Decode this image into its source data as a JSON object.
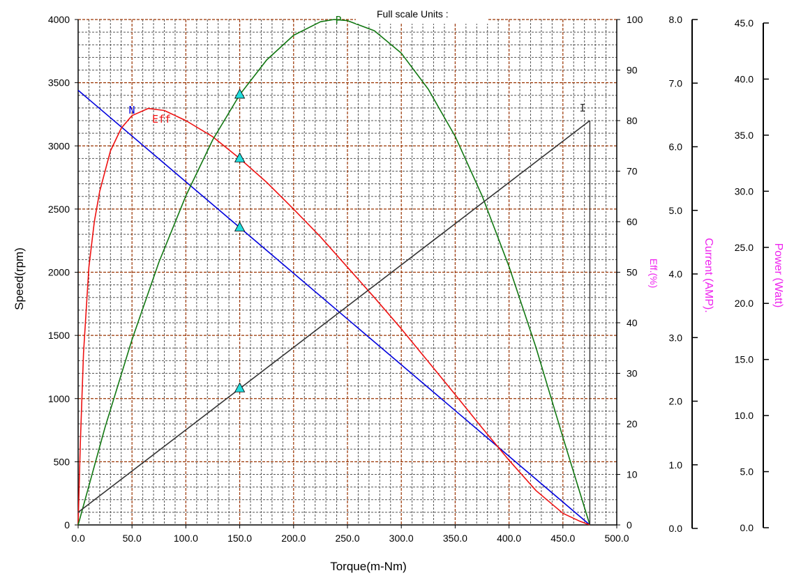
{
  "chart_data": {
    "type": "line",
    "header": "Full scale Units :",
    "xlabel": "Torque(m-Nm)",
    "xlim": [
      0,
      500
    ],
    "x_ticks": [
      "0.0",
      "50.0",
      "100.0",
      "150.0",
      "200.0",
      "250.0",
      "300.0",
      "350.0",
      "400.0",
      "450.0",
      "500.0"
    ],
    "axes": {
      "speed": {
        "label": "Speed(rpm)",
        "range": [
          0,
          4000
        ],
        "ticks": [
          "0",
          "500",
          "1000",
          "1500",
          "2000",
          "2500",
          "3000",
          "3500",
          "4000"
        ]
      },
      "eff": {
        "label": "Eff.(%)",
        "range": [
          0,
          100
        ],
        "ticks": [
          "0",
          "10",
          "20",
          "30",
          "40",
          "50",
          "60",
          "70",
          "80",
          "90",
          "100"
        ]
      },
      "current": {
        "label": "Current (AMP).",
        "range": [
          0,
          8
        ],
        "ticks": [
          "0.0",
          "1.0",
          "2.0",
          "3.0",
          "4.0",
          "5.0",
          "6.0",
          "7.0",
          "8.0"
        ]
      },
      "power": {
        "label": "Power (Watt)",
        "range": [
          0,
          45
        ],
        "ticks": [
          "0.0",
          "5.0",
          "10.0",
          "15.0",
          "20.0",
          "25.0",
          "30.0",
          "35.0",
          "40.0",
          "45.0"
        ]
      }
    },
    "series": [
      {
        "name": "N",
        "axis": "speed",
        "color": "#0000dd",
        "x": [
          0,
          475
        ],
        "y": [
          3440,
          0
        ]
      },
      {
        "name": "Eff",
        "axis": "eff",
        "color": "#ee1111",
        "x": [
          0,
          2,
          5,
          10,
          15,
          20,
          30,
          40,
          50,
          65,
          80,
          100,
          125,
          150,
          175,
          200,
          225,
          250,
          275,
          300,
          325,
          350,
          375,
          400,
          425,
          450,
          465,
          475
        ],
        "y": [
          0,
          16,
          34,
          51,
          60,
          66,
          74,
          78.5,
          81,
          82.4,
          82,
          80,
          76.8,
          72.5,
          67.8,
          62.5,
          57,
          51,
          45,
          38.8,
          32.3,
          25.8,
          19.2,
          12.8,
          6.8,
          2.3,
          0.8,
          0
        ]
      },
      {
        "name": "P",
        "axis": "power",
        "color": "#117711",
        "x": [
          0,
          25,
          50,
          75,
          100,
          125,
          150,
          175,
          200,
          225,
          237.5,
          250,
          275,
          300,
          325,
          350,
          375,
          400,
          425,
          450,
          475
        ],
        "y": [
          0,
          8.7,
          16.5,
          23.4,
          29.3,
          34.3,
          38.3,
          41.4,
          43.6,
          44.8,
          45.0,
          44.9,
          44.0,
          42.0,
          38.8,
          34.6,
          29.3,
          23.0,
          15.8,
          7.8,
          0
        ]
      },
      {
        "name": "I",
        "axis": "current",
        "color": "#333333",
        "x": [
          0,
          475
        ],
        "y": [
          0.2,
          6.4
        ]
      }
    ],
    "markers": {
      "x": 150,
      "points": [
        {
          "series": "P",
          "axis": "power",
          "y": 38.3
        },
        {
          "series": "Eff",
          "axis": "eff",
          "y": 72.5
        },
        {
          "series": "N",
          "axis": "speed",
          "y": 2353
        },
        {
          "series": "I",
          "axis": "current",
          "y": 2.16
        }
      ]
    },
    "grid": true,
    "colors": {
      "major_grid": "#993300",
      "minor_grid": "#555555",
      "marker_fill": "#22dddd",
      "right_titles": "#ee22ee"
    }
  }
}
